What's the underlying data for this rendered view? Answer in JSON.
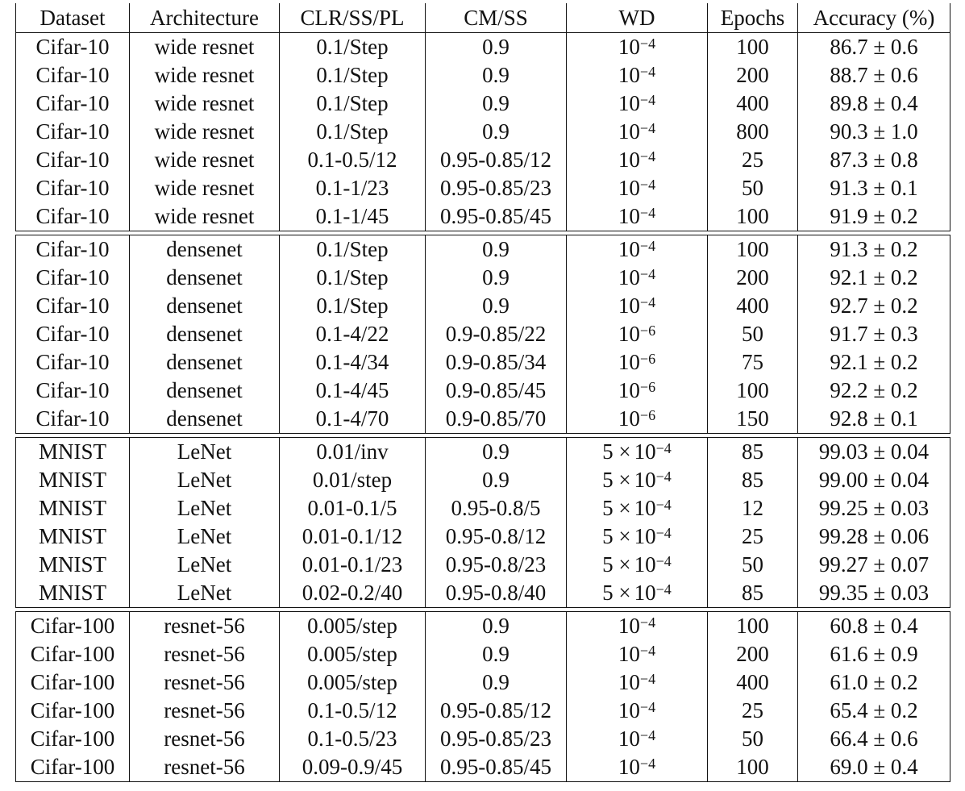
{
  "headers": [
    "Dataset",
    "Architecture",
    "CLR/SS/PL",
    "CM/SS",
    "WD",
    "Epochs",
    "Accuracy (%)"
  ],
  "groups": [
    {
      "rows": [
        {
          "dataset": "Cifar-10",
          "arch": "wide resnet",
          "clr": "0.1/Step",
          "cm": "0.9",
          "wd_pre": "",
          "wd_base": "10",
          "wd_exp": "−4",
          "epochs": "100",
          "acc": "86.7 ± 0.6"
        },
        {
          "dataset": "Cifar-10",
          "arch": "wide resnet",
          "clr": "0.1/Step",
          "cm": "0.9",
          "wd_pre": "",
          "wd_base": "10",
          "wd_exp": "−4",
          "epochs": "200",
          "acc": "88.7 ± 0.6"
        },
        {
          "dataset": "Cifar-10",
          "arch": "wide resnet",
          "clr": "0.1/Step",
          "cm": "0.9",
          "wd_pre": "",
          "wd_base": "10",
          "wd_exp": "−4",
          "epochs": "400",
          "acc": "89.8 ± 0.4"
        },
        {
          "dataset": "Cifar-10",
          "arch": "wide resnet",
          "clr": "0.1/Step",
          "cm": "0.9",
          "wd_pre": "",
          "wd_base": "10",
          "wd_exp": "−4",
          "epochs": "800",
          "acc": "90.3 ± 1.0"
        },
        {
          "dataset": "Cifar-10",
          "arch": "wide resnet",
          "clr": "0.1-0.5/12",
          "cm": "0.95-0.85/12",
          "wd_pre": "",
          "wd_base": "10",
          "wd_exp": "−4",
          "epochs": "25",
          "acc": "87.3 ± 0.8"
        },
        {
          "dataset": "Cifar-10",
          "arch": "wide resnet",
          "clr": "0.1-1/23",
          "cm": "0.95-0.85/23",
          "wd_pre": "",
          "wd_base": "10",
          "wd_exp": "−4",
          "epochs": "50",
          "acc": "91.3 ± 0.1"
        },
        {
          "dataset": "Cifar-10",
          "arch": "wide resnet",
          "clr": "0.1-1/45",
          "cm": "0.95-0.85/45",
          "wd_pre": "",
          "wd_base": "10",
          "wd_exp": "−4",
          "epochs": "100",
          "acc": "91.9 ± 0.2"
        }
      ]
    },
    {
      "rows": [
        {
          "dataset": "Cifar-10",
          "arch": "densenet",
          "clr": "0.1/Step",
          "cm": "0.9",
          "wd_pre": "",
          "wd_base": "10",
          "wd_exp": "−4",
          "epochs": "100",
          "acc": "91.3 ± 0.2"
        },
        {
          "dataset": "Cifar-10",
          "arch": "densenet",
          "clr": "0.1/Step",
          "cm": "0.9",
          "wd_pre": "",
          "wd_base": "10",
          "wd_exp": "−4",
          "epochs": "200",
          "acc": "92.1 ± 0.2"
        },
        {
          "dataset": "Cifar-10",
          "arch": "densenet",
          "clr": "0.1/Step",
          "cm": "0.9",
          "wd_pre": "",
          "wd_base": "10",
          "wd_exp": "−4",
          "epochs": "400",
          "acc": "92.7 ± 0.2"
        },
        {
          "dataset": "Cifar-10",
          "arch": "densenet",
          "clr": "0.1-4/22",
          "cm": "0.9-0.85/22",
          "wd_pre": "",
          "wd_base": "10",
          "wd_exp": "−6",
          "epochs": "50",
          "acc": "91.7 ± 0.3"
        },
        {
          "dataset": "Cifar-10",
          "arch": "densenet",
          "clr": "0.1-4/34",
          "cm": "0.9-0.85/34",
          "wd_pre": "",
          "wd_base": "10",
          "wd_exp": "−6",
          "epochs": "75",
          "acc": "92.1 ± 0.2"
        },
        {
          "dataset": "Cifar-10",
          "arch": "densenet",
          "clr": "0.1-4/45",
          "cm": "0.9-0.85/45",
          "wd_pre": "",
          "wd_base": "10",
          "wd_exp": "−6",
          "epochs": "100",
          "acc": "92.2 ± 0.2"
        },
        {
          "dataset": "Cifar-10",
          "arch": "densenet",
          "clr": "0.1-4/70",
          "cm": "0.9-0.85/70",
          "wd_pre": "",
          "wd_base": "10",
          "wd_exp": "−6",
          "epochs": "150",
          "acc": "92.8 ± 0.1"
        }
      ]
    },
    {
      "rows": [
        {
          "dataset": "MNIST",
          "arch": "LeNet",
          "clr": "0.01/inv",
          "cm": "0.9",
          "wd_pre": "5 ×",
          "wd_base": "10",
          "wd_exp": "−4",
          "epochs": "85",
          "acc": "99.03 ± 0.04"
        },
        {
          "dataset": "MNIST",
          "arch": "LeNet",
          "clr": "0.01/step",
          "cm": "0.9",
          "wd_pre": "5 ×",
          "wd_base": "10",
          "wd_exp": "−4",
          "epochs": "85",
          "acc": "99.00 ± 0.04"
        },
        {
          "dataset": "MNIST",
          "arch": "LeNet",
          "clr": "0.01-0.1/5",
          "cm": "0.95-0.8/5",
          "wd_pre": "5 ×",
          "wd_base": "10",
          "wd_exp": "−4",
          "epochs": "12",
          "acc": "99.25 ± 0.03"
        },
        {
          "dataset": "MNIST",
          "arch": "LeNet",
          "clr": "0.01-0.1/12",
          "cm": "0.95-0.8/12",
          "wd_pre": "5 ×",
          "wd_base": "10",
          "wd_exp": "−4",
          "epochs": "25",
          "acc": "99.28 ± 0.06"
        },
        {
          "dataset": "MNIST",
          "arch": "LeNet",
          "clr": "0.01-0.1/23",
          "cm": "0.95-0.8/23",
          "wd_pre": "5 ×",
          "wd_base": "10",
          "wd_exp": "−4",
          "epochs": "50",
          "acc": "99.27 ± 0.07"
        },
        {
          "dataset": "MNIST",
          "arch": "LeNet",
          "clr": "0.02-0.2/40",
          "cm": "0.95-0.8/40",
          "wd_pre": "5 ×",
          "wd_base": "10",
          "wd_exp": "−4",
          "epochs": "85",
          "acc": "99.35 ± 0.03"
        }
      ]
    },
    {
      "rows": [
        {
          "dataset": "Cifar-100",
          "arch": "resnet-56",
          "clr": "0.005/step",
          "cm": "0.9",
          "wd_pre": "",
          "wd_base": "10",
          "wd_exp": "−4",
          "epochs": "100",
          "acc": "60.8 ± 0.4"
        },
        {
          "dataset": "Cifar-100",
          "arch": "resnet-56",
          "clr": "0.005/step",
          "cm": "0.9",
          "wd_pre": "",
          "wd_base": "10",
          "wd_exp": "−4",
          "epochs": "200",
          "acc": "61.6 ± 0.9"
        },
        {
          "dataset": "Cifar-100",
          "arch": "resnet-56",
          "clr": "0.005/step",
          "cm": "0.9",
          "wd_pre": "",
          "wd_base": "10",
          "wd_exp": "−4",
          "epochs": "400",
          "acc": "61.0 ± 0.2"
        },
        {
          "dataset": "Cifar-100",
          "arch": "resnet-56",
          "clr": "0.1-0.5/12",
          "cm": "0.95-0.85/12",
          "wd_pre": "",
          "wd_base": "10",
          "wd_exp": "−4",
          "epochs": "25",
          "acc": "65.4 ± 0.2"
        },
        {
          "dataset": "Cifar-100",
          "arch": "resnet-56",
          "clr": "0.1-0.5/23",
          "cm": "0.95-0.85/23",
          "wd_pre": "",
          "wd_base": "10",
          "wd_exp": "−4",
          "epochs": "50",
          "acc": "66.4 ± 0.6"
        },
        {
          "dataset": "Cifar-100",
          "arch": "resnet-56",
          "clr": "0.09-0.9/45",
          "cm": "0.95-0.85/45",
          "wd_pre": "",
          "wd_base": "10",
          "wd_exp": "−4",
          "epochs": "100",
          "acc": "69.0 ± 0.4"
        }
      ]
    }
  ]
}
